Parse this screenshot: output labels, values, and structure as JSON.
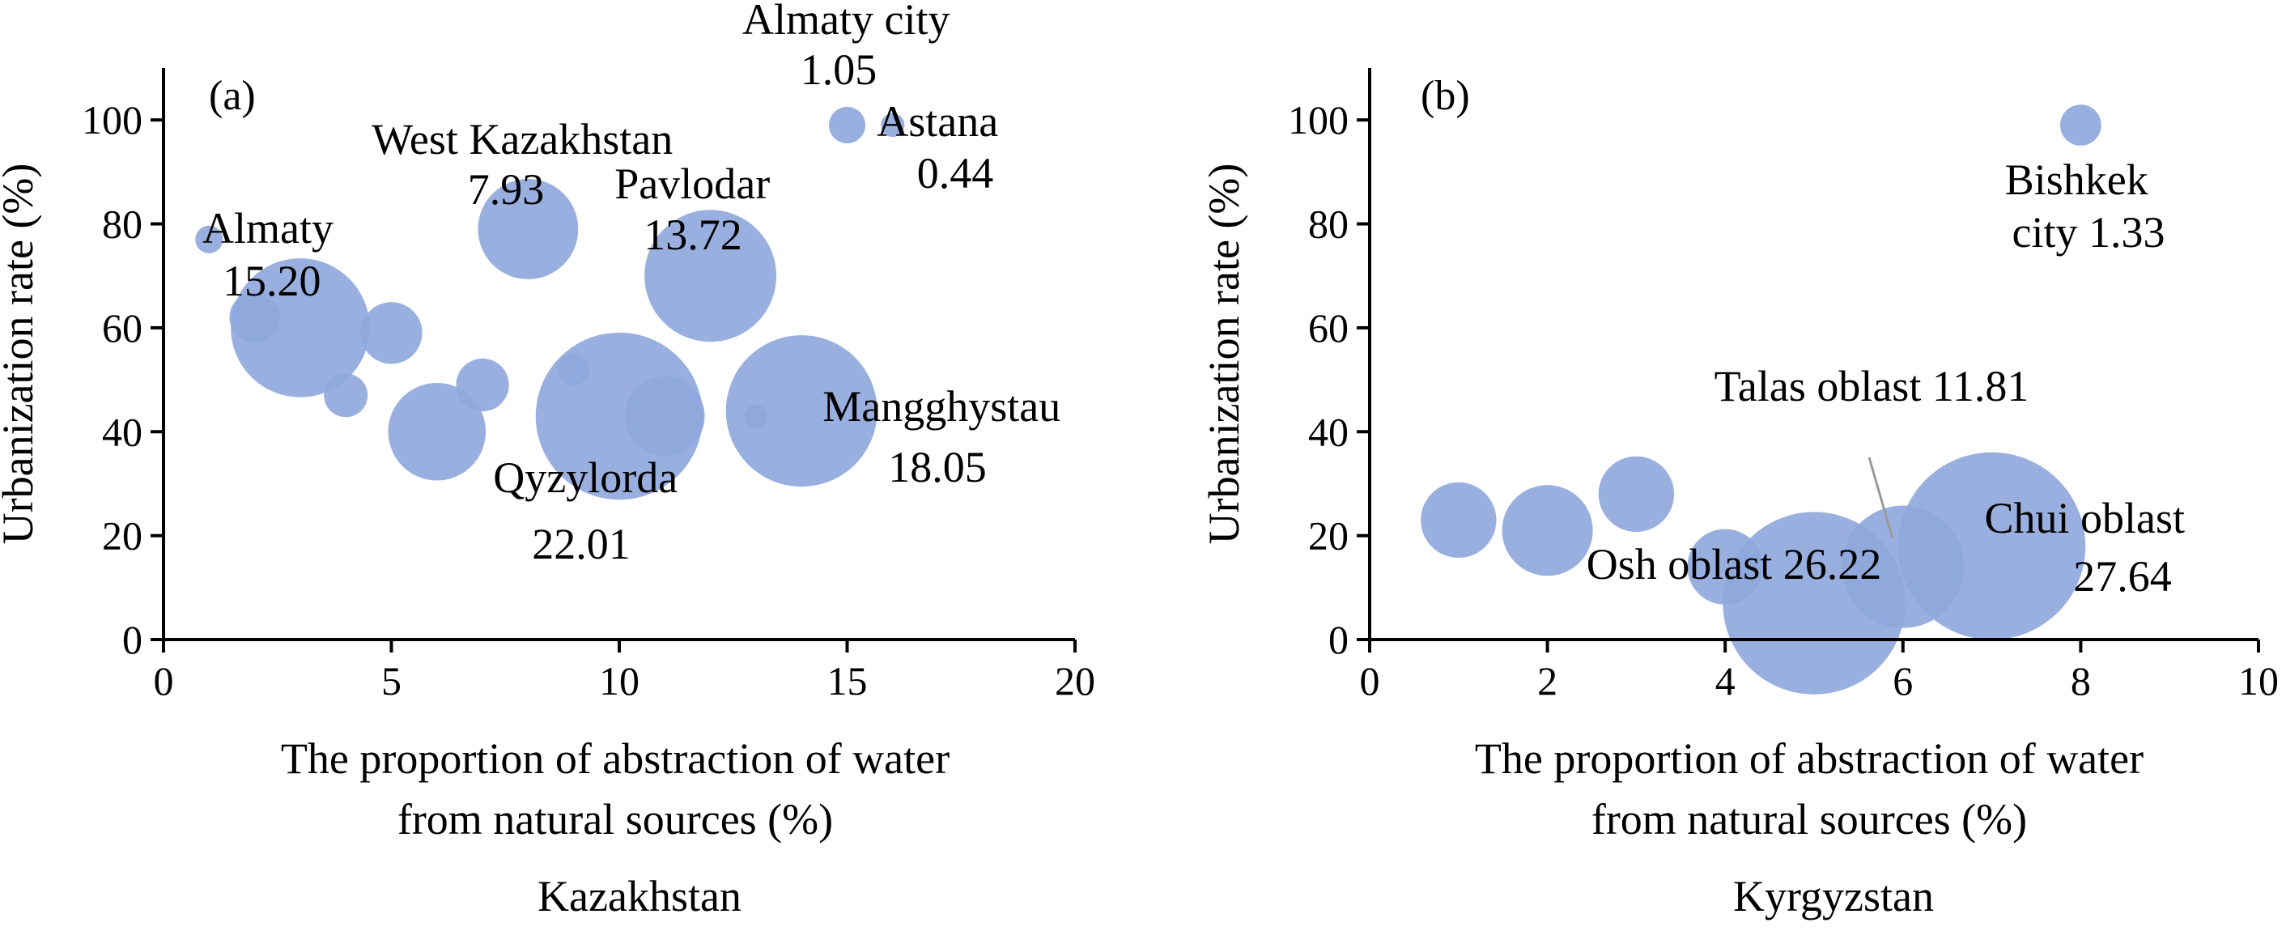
{
  "charts": [
    {
      "panel_label": "(a)",
      "country": "Kazakhstan",
      "xlabel_line1": "The  proportion of abstraction of water",
      "xlabel_line2": "from natural sources (%)",
      "ylabel": "Urbanization rate (%)",
      "bubble_color": "#8fa8dc"
    },
    {
      "panel_label": "(b)",
      "country": "Kyrgyzstan",
      "xlabel_line1": "The  proportion of abstraction of water",
      "xlabel_line2": "from natural sources (%)",
      "ylabel": "Urbanization rate (%)",
      "bubble_color": "#8fa8dc"
    }
  ],
  "chart_data": [
    {
      "type": "scatter",
      "subtype": "bubble",
      "title": "",
      "xlabel": "The  proportion of abstraction of water from natural sources (%)",
      "ylabel": "Urbanization rate (%)",
      "xlim": [
        0,
        20
      ],
      "ylim": [
        0,
        110
      ],
      "xticks": [
        0,
        5,
        10,
        15,
        20
      ],
      "yticks": [
        0,
        20,
        40,
        60,
        80,
        100
      ],
      "grid": false,
      "points": [
        {
          "x": 1,
          "y": 77,
          "size": 0.6
        },
        {
          "x": 2,
          "y": 62,
          "size": 2.0
        },
        {
          "x": 3,
          "y": 60,
          "size": 15.2
        },
        {
          "x": 4,
          "y": 47,
          "size": 1.5
        },
        {
          "x": 5,
          "y": 59,
          "size": 3.0
        },
        {
          "x": 6,
          "y": 40,
          "size": 7.5
        },
        {
          "x": 7,
          "y": 49,
          "size": 2.2
        },
        {
          "x": 8,
          "y": 79,
          "size": 7.93
        },
        {
          "x": 9,
          "y": 52,
          "size": 0.8
        },
        {
          "x": 10,
          "y": 43,
          "size": 22.01
        },
        {
          "x": 11,
          "y": 43,
          "size": 5.0
        },
        {
          "x": 12,
          "y": 70,
          "size": 13.72
        },
        {
          "x": 13,
          "y": 43,
          "size": 0.4
        },
        {
          "x": 14,
          "y": 44,
          "size": 18.05
        },
        {
          "x": 15,
          "y": 99,
          "size": 1.05
        },
        {
          "x": 16,
          "y": 99,
          "size": 0.44
        }
      ],
      "annotations": [
        {
          "lines": [
            "Almaty",
            "15.20"
          ]
        },
        {
          "lines": [
            "West Kazakhstan",
            "7.93"
          ]
        },
        {
          "lines": [
            "Pavlodar",
            "13.72"
          ]
        },
        {
          "lines": [
            "Almaty city",
            "1.05"
          ]
        },
        {
          "lines": [
            "Astana",
            "0.44"
          ]
        },
        {
          "lines": [
            "Mangghystau",
            "18.05"
          ]
        },
        {
          "lines": [
            "Qyzylorda",
            "22.01"
          ]
        }
      ]
    },
    {
      "type": "scatter",
      "subtype": "bubble",
      "title": "",
      "xlabel": "The  proportion of abstraction of water from natural sources (%)",
      "ylabel": "Urbanization rate (%)",
      "xlim": [
        0,
        10
      ],
      "ylim": [
        0,
        110
      ],
      "xticks": [
        0,
        2,
        4,
        6,
        8,
        10
      ],
      "yticks": [
        0,
        20,
        40,
        60,
        80,
        100
      ],
      "grid": false,
      "points": [
        {
          "x": 1,
          "y": 23,
          "size": 4.5
        },
        {
          "x": 2,
          "y": 21,
          "size": 6.5
        },
        {
          "x": 3,
          "y": 28,
          "size": 4.5
        },
        {
          "x": 4,
          "y": 14,
          "size": 4.5
        },
        {
          "x": 5,
          "y": 7,
          "size": 26.22
        },
        {
          "x": 6,
          "y": 14,
          "size": 11.81
        },
        {
          "x": 7,
          "y": 18,
          "size": 27.64
        },
        {
          "x": 8,
          "y": 99,
          "size": 1.33
        }
      ],
      "annotations": [
        {
          "lines": [
            "Bishkek",
            "city 1.33"
          ]
        },
        {
          "lines": [
            "Talas oblast 11.81"
          ]
        },
        {
          "lines": [
            "Chui oblast",
            "27.64"
          ]
        },
        {
          "lines": [
            "Osh oblast 26.22"
          ]
        }
      ]
    }
  ]
}
